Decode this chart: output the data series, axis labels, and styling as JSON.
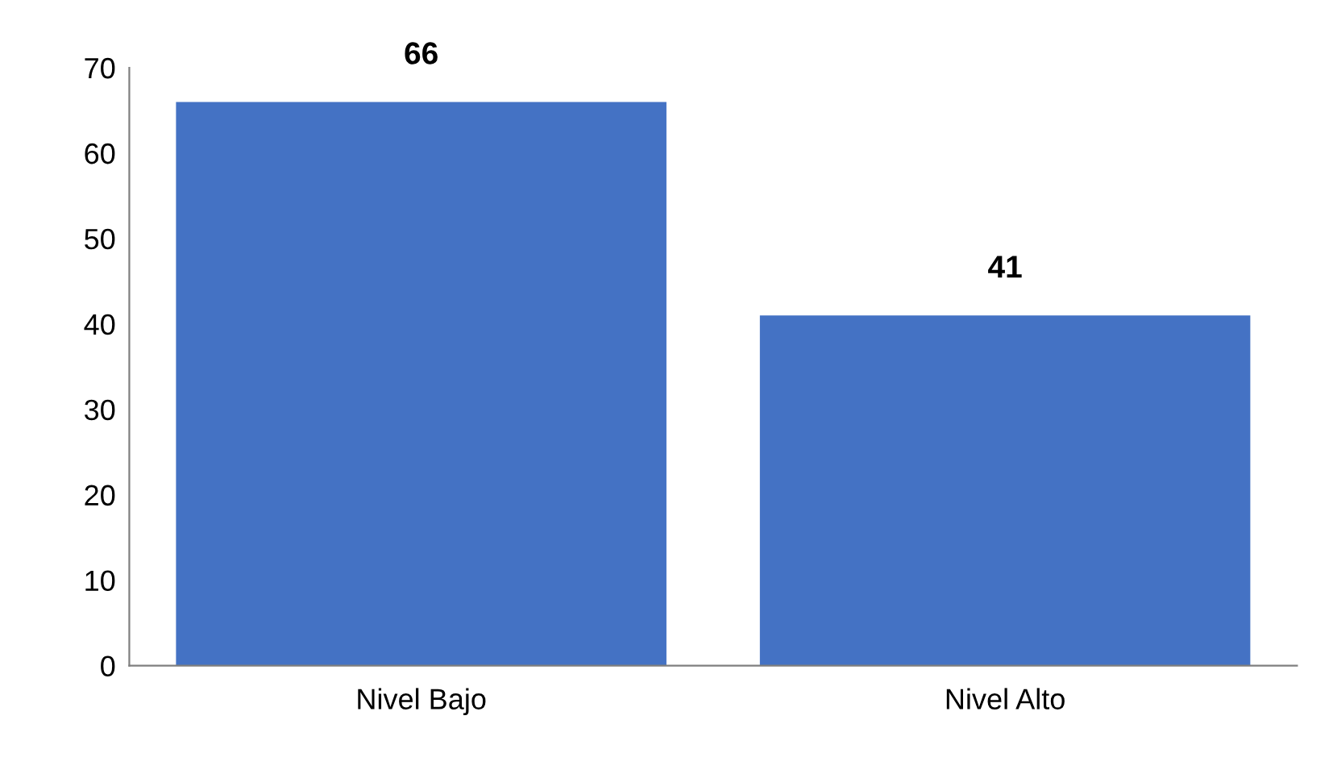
{
  "chart_data": {
    "type": "bar",
    "categories": [
      "Nivel Bajo",
      "Nivel Alto"
    ],
    "values": [
      66,
      41
    ],
    "color": "#4472c4",
    "ylim": [
      0,
      70
    ],
    "yticks": [
      0,
      10,
      20,
      30,
      40,
      50,
      60,
      70
    ],
    "grid": false,
    "data_labels": true
  }
}
